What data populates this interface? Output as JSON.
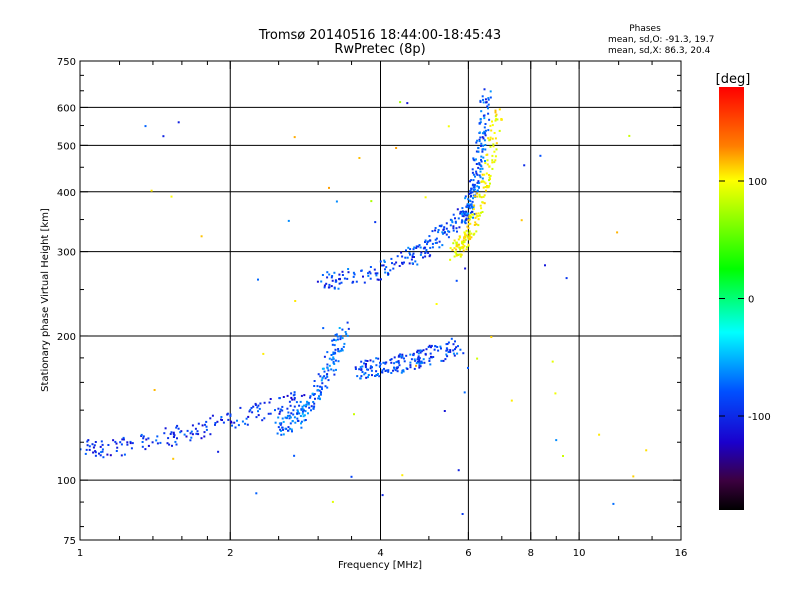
{
  "chart_data": {
    "type": "scatter",
    "title": "Tromsø 20140516 18:44:00-18:45:43",
    "subtitle": "RwPretec (8p)",
    "phases": {
      "heading": "Phases",
      "line1": "mean, sd,O: -91.3, 19.7",
      "line2": "mean, sd,X:  86.3, 20.4"
    },
    "xlabel": "Frequency [MHz]",
    "ylabel": "Stationary phase Virtual Height [km]",
    "xscale": "log",
    "yscale": "log",
    "xlim": [
      1,
      16
    ],
    "ylim": [
      75,
      750
    ],
    "x_ticks": [
      {
        "v": 1,
        "label": "1"
      },
      {
        "v": 2,
        "label": "2"
      },
      {
        "v": 4,
        "label": "4"
      },
      {
        "v": 6,
        "label": "6"
      },
      {
        "v": 8,
        "label": "8"
      },
      {
        "v": 10,
        "label": "10"
      },
      {
        "v": 16,
        "label": "16"
      }
    ],
    "y_ticks": [
      {
        "v": 75,
        "label": "75"
      },
      {
        "v": 100,
        "label": "100"
      },
      {
        "v": 200,
        "label": "200"
      },
      {
        "v": 300,
        "label": "300"
      },
      {
        "v": 400,
        "label": "400"
      },
      {
        "v": 500,
        "label": "500"
      },
      {
        "v": 600,
        "label": "600"
      },
      {
        "v": 750,
        "label": "750"
      }
    ],
    "grid": true,
    "colorbar": {
      "label": "[deg]",
      "range": [
        -180,
        180
      ],
      "ticks": [
        {
          "v": 100,
          "label": "100"
        },
        {
          "v": 0,
          "label": "0"
        },
        {
          "v": -100,
          "label": "-100"
        }
      ]
    },
    "traces": [
      {
        "kind": "O-mode F2 trace",
        "phase": -100,
        "from": [
          3.05,
          262
        ],
        "to": [
          5.9,
          360
        ],
        "curve": 0.6
      },
      {
        "kind": "O-mode F2 cusp",
        "phase": -95,
        "from": [
          5.9,
          360
        ],
        "to": [
          6.55,
          640
        ],
        "curve": 0.4
      },
      {
        "kind": "X-mode F2 cusp",
        "phase": 80,
        "from": [
          5.6,
          300
        ],
        "to": [
          6.9,
          600
        ],
        "curve": 0.5
      },
      {
        "kind": "O-mode E/F1 trace",
        "phase": -105,
        "from": [
          1.0,
          116
        ],
        "to": [
          2.8,
          150
        ],
        "curve": 0.3
      },
      {
        "kind": "O-mode F1 rise",
        "phase": -90,
        "from": [
          2.5,
          130
        ],
        "to": [
          3.4,
          210
        ],
        "curve": 0.5
      },
      {
        "kind": "F1 upper trace",
        "phase": -100,
        "from": [
          3.6,
          170
        ],
        "to": [
          5.8,
          190
        ],
        "curve": 0.2
      }
    ]
  }
}
